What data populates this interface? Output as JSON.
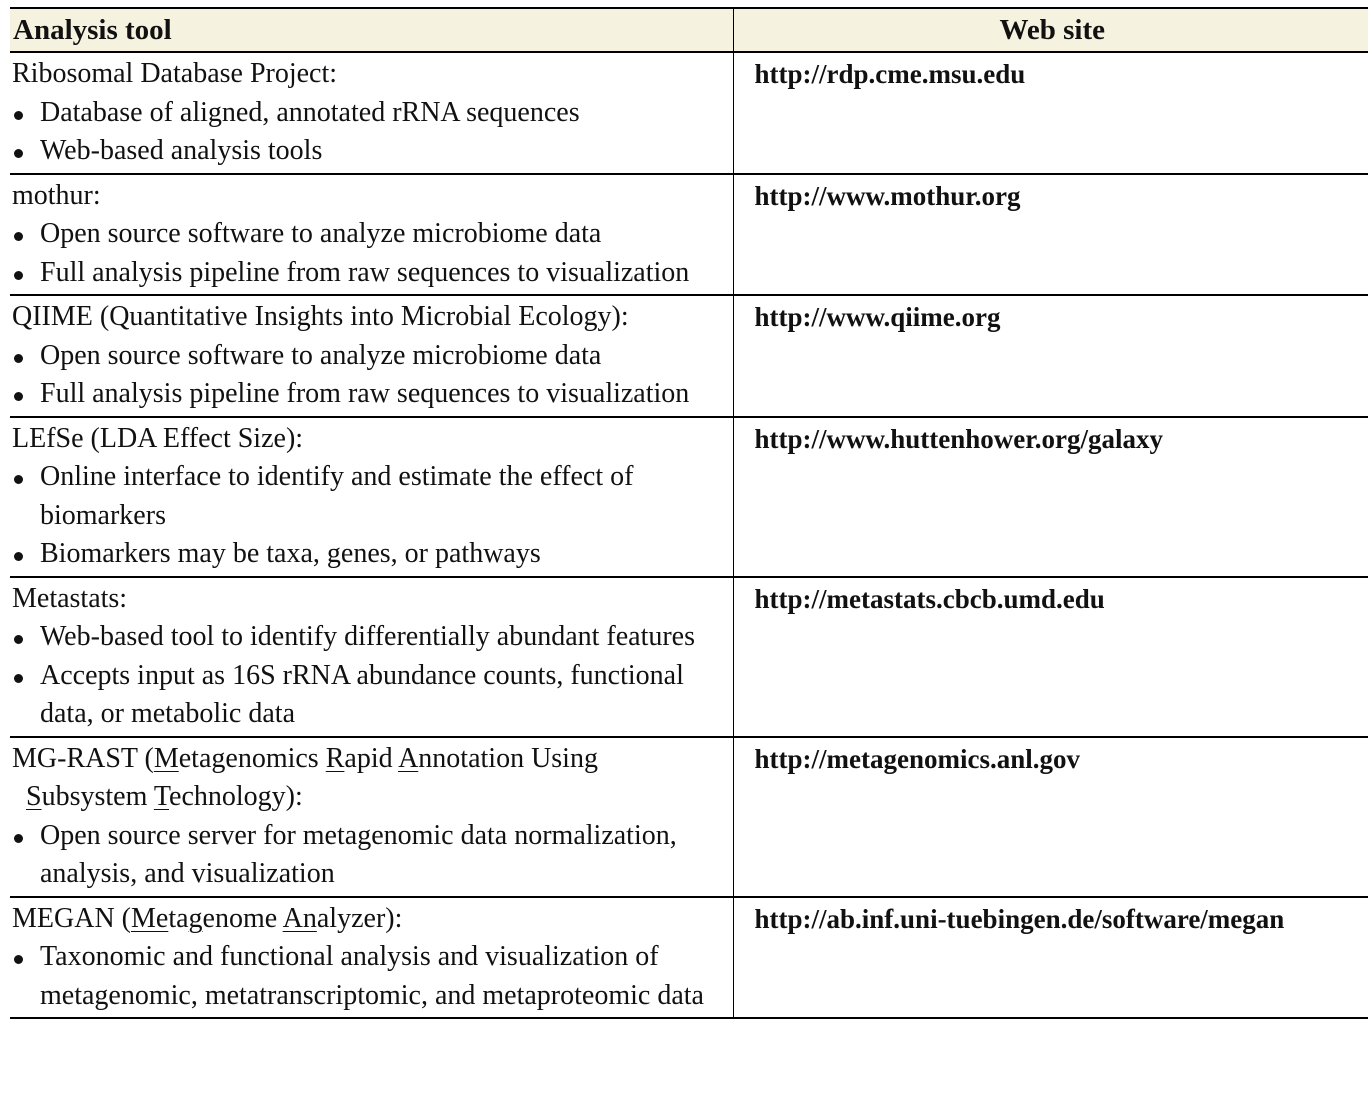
{
  "headers": {
    "tool": "Analysis tool",
    "site": "Web site"
  },
  "rows": [
    {
      "title": "Ribosomal Database Project:",
      "bullets": [
        "Database of aligned, annotated rRNA sequences",
        "Web-based analysis tools"
      ],
      "url": "http://rdp.cme.msu.edu"
    },
    {
      "title": "mothur:",
      "bullets": [
        "Open source software to analyze microbiome data",
        "Full analysis pipeline from raw sequences to visualization"
      ],
      "url": "http://www.mothur.org"
    },
    {
      "title": "QIIME (Quantitative Insights into Microbial Ecology):",
      "bullets": [
        "Open source software to analyze microbiome data",
        "Full analysis pipeline from raw sequences to visualization"
      ],
      "url": "http://www.qiime.org"
    },
    {
      "title": "LEfSe (LDA Effect Size):",
      "bullets": [
        "Online interface to identify and estimate the effect of biomarkers",
        "Biomarkers may be taxa, genes, or pathways"
      ],
      "url": "http://www.huttenhower.org/galaxy"
    },
    {
      "title": "Metastats:",
      "bullets": [
        "Web-based tool to identify differentially abundant features",
        "Accepts input as 16S rRNA abundance counts, functional data, or metabolic data"
      ],
      "url": "http://metastats.cbcb.umd.edu"
    },
    {
      "title_parts": {
        "p1": "MG-RAST (",
        "u1": "M",
        "p2": "etagenomics ",
        "u2": "R",
        "p3": "apid ",
        "u3": "A",
        "p4": "nnotation Using",
        "u4": "S",
        "p5": "ubsystem ",
        "u5": "T",
        "p6": "echnology):"
      },
      "bullets": [
        "Open source server for metagenomic data normalization, analysis, and visualization"
      ],
      "url": "http://metagenomics.anl.gov"
    },
    {
      "title_parts": {
        "p1": "MEGAN (",
        "u1": "Me",
        "p2": "ta",
        "u2": "g",
        "p3": "enome ",
        "u3": "An",
        "p4": "alyzer):"
      },
      "bullets": [
        "Taxonomic and functional analysis and visualization of metagenomic, metatranscriptomic, and metaproteomic data"
      ],
      "url": "http://ab.inf.uni-tuebingen.de/software/megan"
    }
  ]
}
